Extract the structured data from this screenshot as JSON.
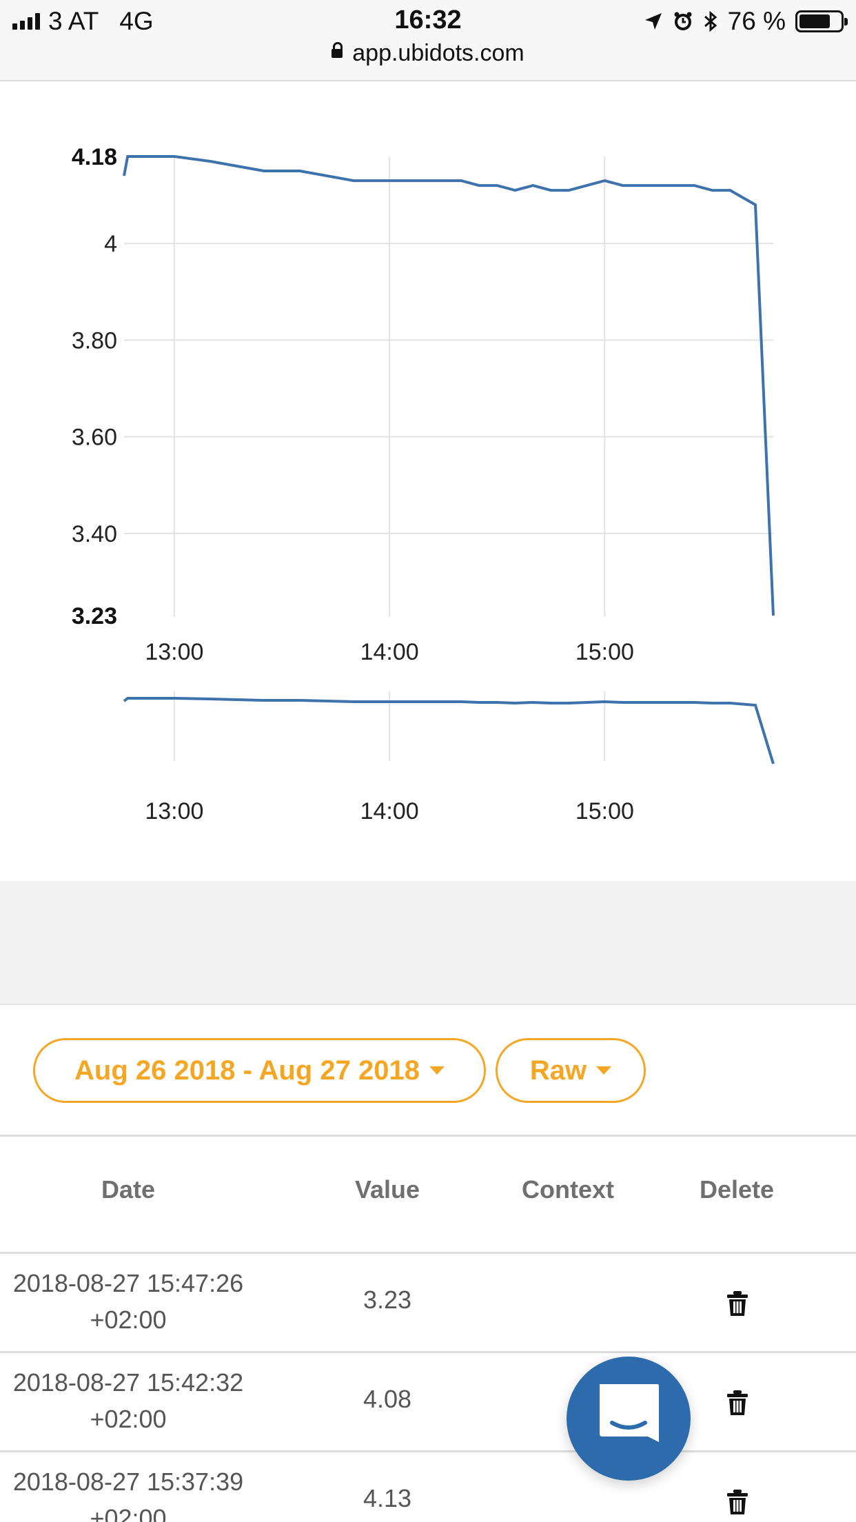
{
  "status_bar": {
    "carrier": "3 AT",
    "network": "4G",
    "time": "16:32",
    "battery": "76 %",
    "url": "app.ubidots.com"
  },
  "chart_data": [
    {
      "type": "line",
      "ylim": [
        3.23,
        4.18
      ],
      "yticks": [
        "3.23",
        "3.40",
        "3.60",
        "3.80",
        "4",
        "4.18"
      ],
      "xticks": [
        "13:00",
        "14:00",
        "15:00"
      ],
      "grid": true,
      "color": "#3d72ad",
      "series": [
        {
          "x": [
            "12:46",
            "12:47",
            "13:00",
            "13:10",
            "13:25",
            "13:35",
            "13:50",
            "14:00",
            "14:15",
            "14:20",
            "14:25",
            "14:30",
            "14:35",
            "14:40",
            "14:45",
            "14:50",
            "14:55",
            "15:00",
            "15:05",
            "15:10",
            "15:20",
            "15:25",
            "15:30",
            "15:35",
            "15:42",
            "15:47"
          ],
          "y": [
            4.14,
            4.18,
            4.18,
            4.17,
            4.15,
            4.15,
            4.13,
            4.13,
            4.13,
            4.13,
            4.12,
            4.12,
            4.11,
            4.12,
            4.11,
            4.11,
            4.12,
            4.13,
            4.12,
            4.12,
            4.12,
            4.12,
            4.11,
            4.11,
            4.08,
            3.23
          ]
        }
      ]
    },
    {
      "type": "line",
      "xticks": [
        "13:00",
        "14:00",
        "15:00"
      ],
      "grid": true,
      "color": "#3d72ad",
      "note_kind": "overview"
    }
  ],
  "filters": {
    "date_range": "Aug 26 2018 - Aug 27 2018",
    "aggregation": "Raw"
  },
  "table": {
    "headers": {
      "date": "Date",
      "value": "Value",
      "context": "Context",
      "delete": "Delete"
    },
    "rows": [
      {
        "date_line1": "2018-08-27 15:47:26",
        "date_line2": "+02:00",
        "value": "3.23"
      },
      {
        "date_line1": "2018-08-27 15:42:32",
        "date_line2": "+02:00",
        "value": "4.08"
      },
      {
        "date_line1": "2018-08-27 15:37:39",
        "date_line2": "+02:00",
        "value": "4.13"
      }
    ]
  },
  "icons": {
    "delete": "trash-icon",
    "chat": "chat-bubble-icon"
  },
  "colors": {
    "accent": "#f5a623",
    "line": "#3d72ad",
    "chat": "#2e6bad"
  }
}
